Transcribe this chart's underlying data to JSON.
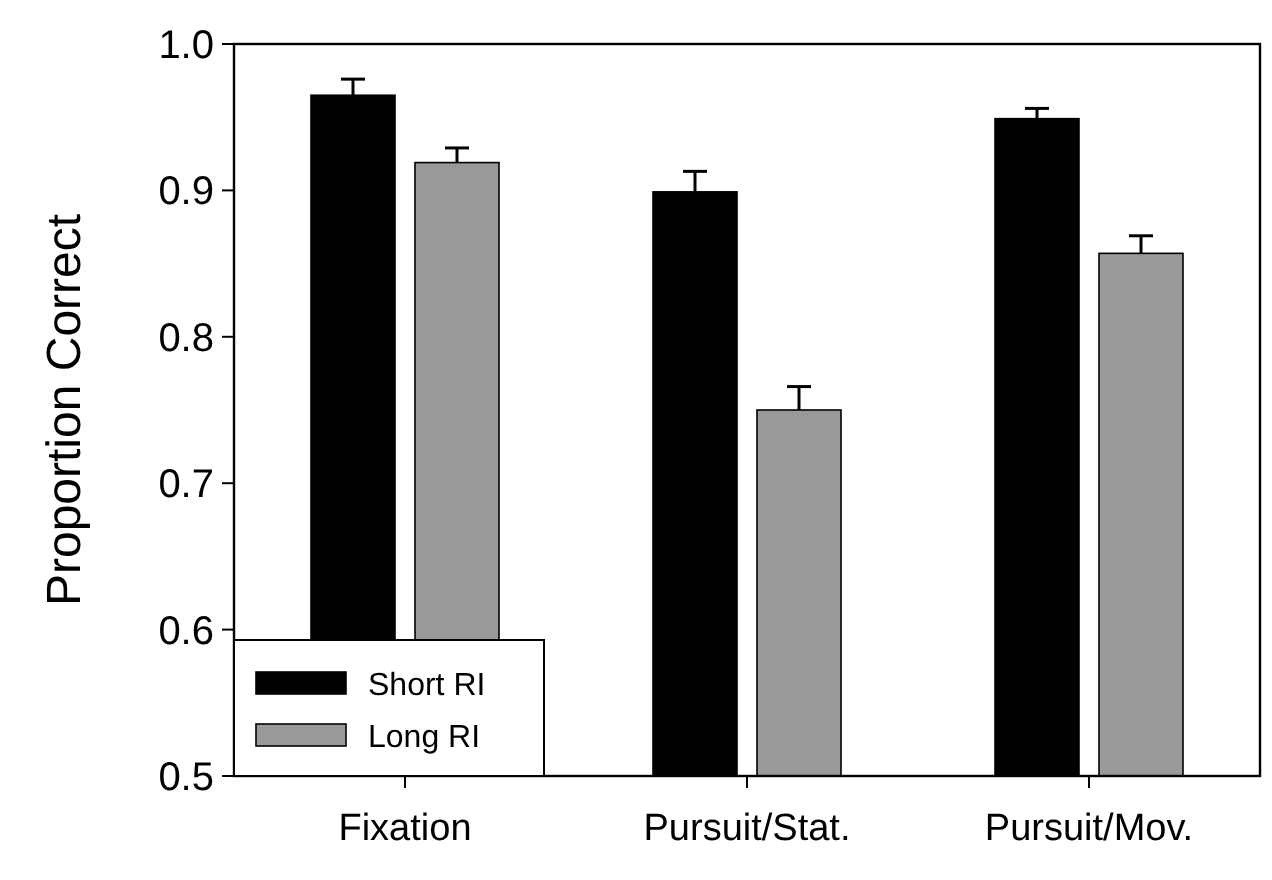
{
  "chart_data": {
    "type": "bar",
    "ylabel": "Proportion Correct",
    "categories": [
      "Fixation",
      "Pursuit/Stat.",
      "Pursuit/Mov."
    ],
    "series": [
      {
        "name": "Short RI",
        "color": "#000000",
        "values": [
          0.965,
          0.899,
          0.949
        ],
        "errors": [
          0.011,
          0.014,
          0.007
        ]
      },
      {
        "name": "Long RI",
        "color": "#999999",
        "values": [
          0.919,
          0.75,
          0.857
        ],
        "errors": [
          0.01,
          0.016,
          0.012
        ]
      }
    ],
    "ylim": [
      0.5,
      1.0
    ],
    "yticks": [
      {
        "value": 0.5,
        "label": "0.5"
      },
      {
        "value": 0.6,
        "label": "0.6"
      },
      {
        "value": 0.7,
        "label": "0.7"
      },
      {
        "value": 0.8,
        "label": "0.8"
      },
      {
        "value": 0.9,
        "label": "0.9"
      },
      {
        "value": 1.0,
        "label": "1.0"
      }
    ],
    "grid": false,
    "legend": "bottom left"
  }
}
